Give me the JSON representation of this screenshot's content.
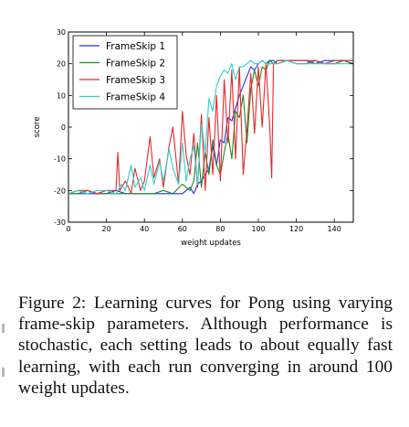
{
  "caption": {
    "text": "Figure 2: Learning curves for Pong using varying frame-skip parameters. Although performance is stochastic, each setting leads to about equally fast learning, with each run converging in around 100 weight updates."
  },
  "colors": {
    "FrameSkip 1": "#2233ee",
    "FrameSkip 2": "#22882a",
    "FrameSkip 3": "#e8282a",
    "FrameSkip 4": "#33cccc"
  },
  "chart_data": {
    "type": "line",
    "title": "",
    "xlabel": "weight updates",
    "ylabel": "score",
    "xlim": [
      0,
      150
    ],
    "ylim": [
      -30,
      30
    ],
    "xticks": [
      0,
      20,
      40,
      60,
      80,
      100,
      120,
      140
    ],
    "yticks": [
      -30,
      -20,
      -10,
      0,
      10,
      20,
      30
    ],
    "grid": false,
    "legend_position": "top-left",
    "series": [
      {
        "name": "FrameSkip 1",
        "x": [
          0,
          5,
          10,
          15,
          20,
          25,
          30,
          35,
          40,
          45,
          50,
          55,
          60,
          62,
          64,
          66,
          68,
          70,
          72,
          74,
          76,
          78,
          80,
          82,
          84,
          86,
          88,
          90,
          92,
          94,
          96,
          98,
          100,
          102,
          104,
          106,
          108,
          110,
          115,
          120,
          125,
          130,
          135,
          140,
          145,
          150
        ],
        "y": [
          -21,
          -21,
          -21,
          -21,
          -21,
          -20,
          -21,
          -21,
          -21,
          -21,
          -21,
          -21,
          -21,
          -20,
          -19,
          -21,
          -18,
          -17,
          -15,
          -13,
          -6,
          -12,
          -4,
          -5,
          3,
          2,
          6,
          10,
          13,
          16,
          19,
          18,
          20,
          21,
          20,
          21,
          21,
          20,
          21,
          21,
          21,
          20,
          21,
          21,
          21,
          20
        ]
      },
      {
        "name": "FrameSkip 2",
        "x": [
          0,
          5,
          10,
          15,
          20,
          25,
          30,
          35,
          40,
          45,
          50,
          55,
          60,
          64,
          66,
          68,
          70,
          72,
          74,
          76,
          78,
          80,
          82,
          84,
          86,
          88,
          90,
          92,
          94,
          96,
          98,
          100,
          102,
          104,
          106,
          108,
          110,
          115,
          120,
          125,
          130,
          135,
          140,
          145,
          150
        ],
        "y": [
          -21,
          -21,
          -20,
          -21,
          -21,
          -21,
          -21,
          -21,
          -21,
          -21,
          -20,
          -21,
          -18,
          -20,
          -17,
          -5,
          -19,
          -8,
          -15,
          -4,
          -12,
          -15,
          -8,
          -2,
          -10,
          5,
          3,
          10,
          -5,
          12,
          18,
          13,
          19,
          18,
          21,
          20,
          21,
          21,
          20,
          20,
          21,
          20,
          20,
          21,
          20
        ]
      },
      {
        "name": "FrameSkip 3",
        "x": [
          0,
          5,
          10,
          15,
          20,
          25,
          26,
          27,
          30,
          33,
          35,
          38,
          40,
          43,
          45,
          48,
          50,
          53,
          55,
          58,
          60,
          62,
          64,
          66,
          68,
          70,
          72,
          74,
          76,
          78,
          80,
          82,
          84,
          86,
          88,
          90,
          92,
          94,
          96,
          98,
          100,
          102,
          104,
          106,
          107,
          108,
          110,
          115,
          120,
          125,
          130,
          135,
          140,
          145,
          150
        ],
        "y": [
          -21,
          -20,
          -20,
          -21,
          -20,
          -20,
          -8,
          -20,
          -17,
          -21,
          -13,
          -20,
          -17,
          -3,
          -16,
          -10,
          -19,
          -6,
          0,
          -18,
          5,
          -9,
          -15,
          -2,
          -19,
          4,
          -20,
          3,
          -15,
          10,
          -17,
          15,
          -5,
          18,
          -10,
          19,
          -15,
          -1,
          17,
          -2,
          19,
          0,
          20,
          0,
          -16,
          20,
          21,
          21,
          21,
          21,
          21,
          20,
          21,
          21,
          21
        ]
      },
      {
        "name": "FrameSkip 4",
        "x": [
          0,
          5,
          10,
          15,
          20,
          25,
          28,
          30,
          33,
          35,
          38,
          40,
          43,
          45,
          48,
          50,
          53,
          55,
          58,
          60,
          62,
          64,
          66,
          68,
          70,
          72,
          74,
          76,
          78,
          80,
          82,
          84,
          86,
          88,
          90,
          92,
          94,
          96,
          98,
          100,
          102,
          104,
          106,
          108,
          110,
          115,
          120,
          125,
          130,
          135,
          140,
          145,
          150
        ],
        "y": [
          -21,
          -20,
          -21,
          -20,
          -20,
          -21,
          -18,
          -20,
          -12,
          -19,
          -16,
          -20,
          -12,
          -18,
          -11,
          -17,
          -7,
          -13,
          -18,
          -5,
          -17,
          -10,
          -6,
          -18,
          1,
          -8,
          9,
          5,
          13,
          16,
          18,
          17,
          20,
          15,
          19,
          19,
          20,
          21,
          20,
          20,
          21,
          20,
          20,
          20,
          20,
          21,
          20,
          20,
          20,
          20,
          20,
          20,
          20
        ]
      }
    ]
  }
}
